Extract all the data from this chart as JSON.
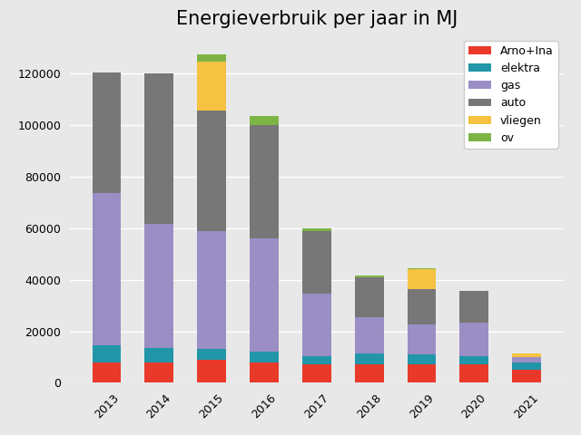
{
  "title": "Energieverbruik per jaar in MJ",
  "years": [
    2013,
    2014,
    2015,
    2016,
    2017,
    2018,
    2019,
    2020,
    2021
  ],
  "categories": [
    "Arno+Ina",
    "elektra",
    "gas",
    "auto",
    "vliegen",
    "ov"
  ],
  "colors": [
    "#e8392a",
    "#2196a8",
    "#9b8ec4",
    "#777777",
    "#f5c242",
    "#7db544"
  ],
  "data": {
    "Arno+Ina": [
      8000,
      8000,
      9000,
      8000,
      7000,
      7000,
      7000,
      7000,
      5000
    ],
    "elektra": [
      6500,
      5500,
      4000,
      4000,
      3500,
      4500,
      4000,
      3500,
      3000
    ],
    "gas": [
      59000,
      48000,
      46000,
      44000,
      24000,
      14000,
      11500,
      13000,
      2000
    ],
    "auto": [
      47000,
      58500,
      46500,
      44000,
      24500,
      15500,
      14000,
      12000,
      0
    ],
    "vliegen": [
      0,
      0,
      19000,
      0,
      0,
      0,
      7500,
      0,
      1500
    ],
    "ov": [
      0,
      0,
      3000,
      3500,
      1000,
      500,
      500,
      0,
      0
    ]
  },
  "ylim": [
    0,
    135000
  ],
  "yticks": [
    0,
    20000,
    40000,
    60000,
    80000,
    100000,
    120000
  ],
  "plot_bg_color": "#e8e8e8",
  "fig_bg_color": "#e8e8e8",
  "legend_loc": "upper right",
  "title_fontsize": 15,
  "tick_fontsize": 9,
  "bar_width": 0.55
}
